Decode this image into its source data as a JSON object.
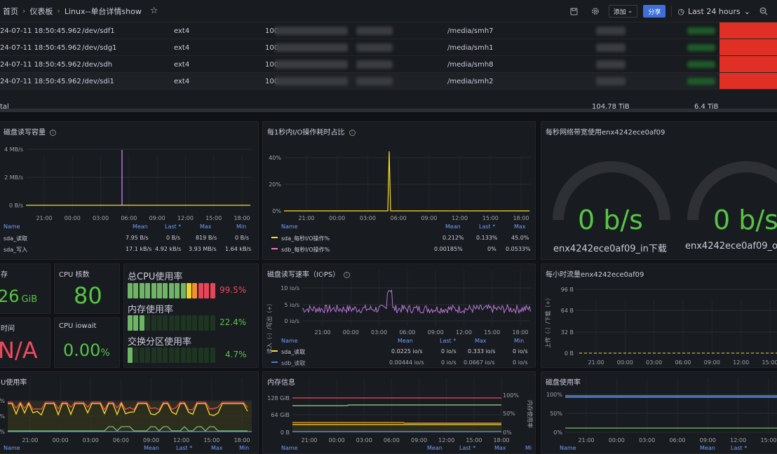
{
  "breadcrumb": {
    "home": "首页",
    "dashboards": "仪表板",
    "title": "Linux--单台详情show"
  },
  "toolbar": {
    "add_label": "添加",
    "share_label": "分享",
    "time_range": "Last 24 hours"
  },
  "table": {
    "rows": [
      {
        "time": "24-07-11 18:50:45.962",
        "device": "/dev/sdf1",
        "fs": "ext4",
        "size": "100",
        "mount": "/media/smh7"
      },
      {
        "time": "24-07-11 18:50:45.962",
        "device": "/dev/sdg1",
        "fs": "ext4",
        "size": "100",
        "mount": "/media/smh1"
      },
      {
        "time": "24-07-11 18:50:45.962",
        "device": "/dev/sdh",
        "fs": "ext4",
        "size": "100",
        "mount": "/media/smh8"
      },
      {
        "time": "24-07-11 18:50:45.962",
        "device": "/dev/sdi1",
        "fs": "ext4",
        "size": "100",
        "mount": "/media/smh2"
      }
    ],
    "total_label": "tal",
    "total_size": "104.78 TiB",
    "total_used": "6.4 TiB"
  },
  "disk_rw": {
    "title": "磁盘读写容量",
    "y_ticks": [
      "4 MB/s",
      "2 MB/s",
      "0 B/s"
    ],
    "x_ticks": [
      "21:00",
      "00:00",
      "03:00",
      "06:00",
      "09:00",
      "12:00",
      "15:00",
      "18:00"
    ],
    "headers": {
      "name": "Name",
      "mean": "Mean",
      "last": "Last *",
      "max": "Max",
      "min": "Min"
    },
    "rows": [
      {
        "name": "sda_读取",
        "mean": "7.95 B/s",
        "last": "0 B/s",
        "max": "819 B/s",
        "min": "0 B/s"
      },
      {
        "name": "sda_写入",
        "mean": "17.1 kB/s",
        "last": "4.92 kB/s",
        "max": "3.93 MB/s",
        "min": "1.64 kB/s"
      }
    ]
  },
  "io_time": {
    "title": "每1秒内I/O操作耗时占比",
    "y_ticks": [
      "40%",
      "20%",
      "0%"
    ],
    "x_ticks": [
      "21:00",
      "00:00",
      "03:00",
      "06:00",
      "09:00",
      "12:00",
      "15:00",
      "18:00"
    ],
    "headers": {
      "name": "Name",
      "mean": "Mean",
      "last": "Last *",
      "max": "Max"
    },
    "rows": [
      {
        "name": "sda_每秒I/O操作%",
        "mean": "0.212%",
        "last": "0.133%",
        "max": "45.0%"
      },
      {
        "name": "sdb_每秒I/O操作%",
        "mean": "0.00185%",
        "last": "0%",
        "max": "0.0533%"
      }
    ]
  },
  "net_bw": {
    "title": "每秒网络带宽使用enx4242ece0af09",
    "gauges": [
      {
        "value": "0 b/s",
        "label": "enx4242ece0af09_in下载"
      },
      {
        "value": "0 b/s",
        "label": "enx4242ece0af09_o"
      }
    ]
  },
  "mem_total": {
    "title": "存",
    "value": "26",
    "unit": "GiB"
  },
  "cpu_cores": {
    "title": "CPU 核数",
    "value": "80"
  },
  "uptime": {
    "title": "时间",
    "value": "N/A"
  },
  "cpu_iowait": {
    "title": "CPU iowait",
    "value": "0.00",
    "unit": "%"
  },
  "bars": [
    {
      "label": "总CPU使用率",
      "value": "99.5%",
      "pct": 99.5
    },
    {
      "label": "内存使用率",
      "value": "22.4%",
      "pct": 22.4
    },
    {
      "label": "交换分区使用率",
      "value": "4.7%",
      "pct": 4.7
    }
  ],
  "iops": {
    "title": "磁盘读写速率（IOPS）",
    "y_axis_label": "读入（-）/写出（+）",
    "y_ticks": [
      "10 io/s",
      "5 io/s",
      "0 io/s"
    ],
    "x_ticks": [
      "21:00",
      "00:00",
      "03:00",
      "06:00",
      "09:00",
      "12:00",
      "15:00",
      "18:00"
    ],
    "headers": {
      "name": "Name",
      "mean": "Mean",
      "last": "Last *",
      "max": "Max",
      "min": "Min"
    },
    "rows": [
      {
        "name": "sda_读取",
        "mean": "0.0225 io/s",
        "last": "0 io/s",
        "max": "0.333 io/s",
        "min": "0 io/s"
      },
      {
        "name": "sdb_读取",
        "mean": "0.00444 io/s",
        "last": "0 io/s",
        "max": "0.0667 io/s",
        "min": "0 io/s"
      }
    ]
  },
  "hourly": {
    "title": "每小时流量enx4242ece0af09",
    "y_axis_label": "上传（-）/下载（+）",
    "y_ticks": [
      "96 B",
      "64 B",
      "32 B",
      "0 B"
    ],
    "x_ticks": [
      "21:00",
      "00:00",
      "03:00",
      "06:00",
      "09:00",
      "12:00",
      "15:00"
    ]
  },
  "cpu_usage": {
    "title": "U使用率",
    "y_ticks": [
      "%",
      "%",
      "%"
    ],
    "x_ticks": [
      "21:00",
      "00:00",
      "03:00",
      "06:00",
      "09:00",
      "12:00",
      "15:00",
      "18:00"
    ],
    "headers": {
      "name": "Name",
      "mean": "Mean",
      "last": "Last *",
      "max": "Max",
      "min": "Min"
    }
  },
  "mem_info": {
    "title": "内存信息",
    "y_ticks": [
      "128 GiB",
      "64 GiB",
      "0 B"
    ],
    "y2_ticks": [
      "100%",
      "50%",
      "0%"
    ],
    "y2_label": "内存使用率",
    "x_ticks": [
      "21:00",
      "00:00",
      "03:00",
      "06:00",
      "09:00",
      "12:00",
      "15:00",
      "18:00"
    ],
    "headers": {
      "name": "Name",
      "mean": "Mean",
      "last": "Last *",
      "max": "Max",
      "min": "Mi"
    }
  },
  "disk_usage": {
    "title": "磁盘使用率",
    "y_ticks": [
      "100%",
      "50%",
      "0%"
    ],
    "x_ticks": [
      "21:00",
      "00:00",
      "03:00",
      "06:00",
      "09:00",
      "12:00",
      "15:00"
    ],
    "headers": {
      "name": "Name",
      "mean": "Mean",
      "last": "Last *"
    }
  },
  "colors": {
    "green": "#56c645",
    "red": "#f2495c",
    "yellow": "#fade2a",
    "purple": "#b877d9",
    "orange": "#ff9830"
  }
}
